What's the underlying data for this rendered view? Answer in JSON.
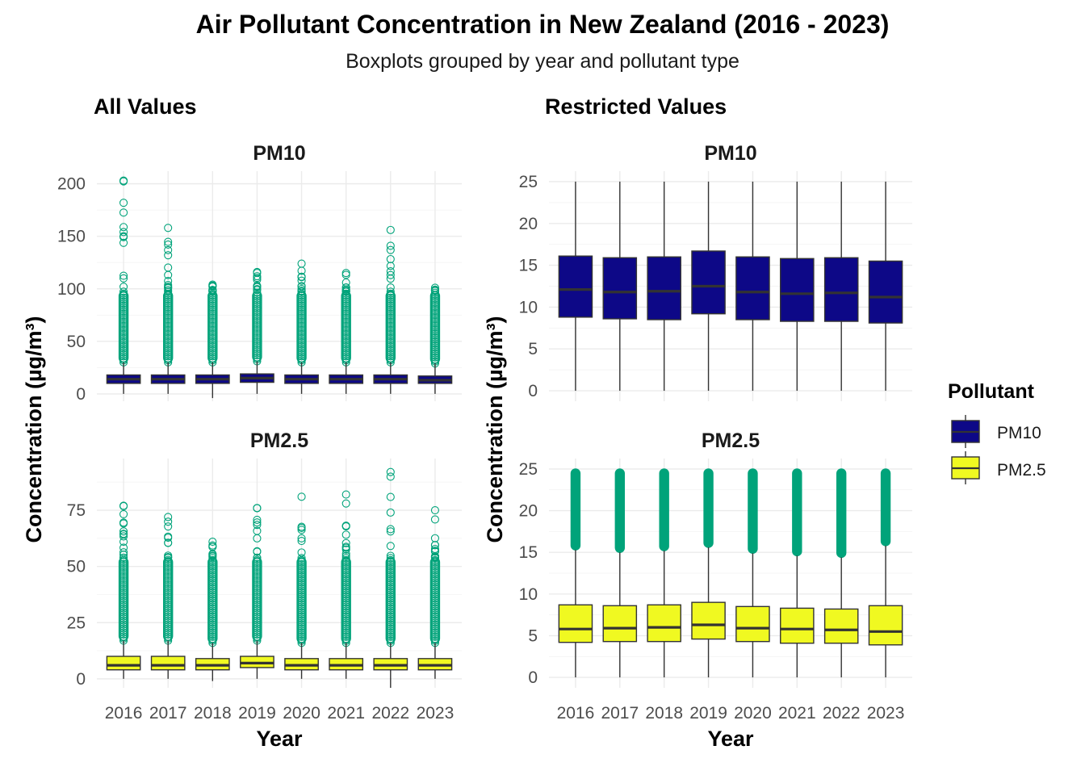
{
  "title": "Air Pollutant Concentration in New Zealand (2016 - 2023)",
  "subtitle": "Boxplots grouped by year and pollutant type",
  "legend": {
    "title": "Pollutant",
    "items": [
      {
        "label": "PM10",
        "color": "#0d0887"
      },
      {
        "label": "PM2.5",
        "color": "#f0f921"
      }
    ]
  },
  "outlier_color": "#00a37a",
  "chart_data": [
    {
      "type": "boxplot",
      "group_title": "All Values",
      "facets": [
        {
          "title": "PM10",
          "fill": "#0d0887",
          "xlabel": "",
          "ylabel": "Concentration (µg/m³)",
          "categories": [
            "2016",
            "2017",
            "2018",
            "2019",
            "2020",
            "2021",
            "2022",
            "2023"
          ],
          "ylim": [
            -7,
            212
          ],
          "yticks": [
            0,
            50,
            100,
            150,
            200
          ],
          "boxes": [
            {
              "q1": 10,
              "median": 14,
              "q3": 18,
              "whisker_low": 0,
              "whisker_high": 30,
              "outlier_max": 203
            },
            {
              "q1": 10,
              "median": 14,
              "q3": 18,
              "whisker_low": 0,
              "whisker_high": 30,
              "outlier_max": 158
            },
            {
              "q1": 10,
              "median": 14,
              "q3": 18,
              "whisker_low": -4,
              "whisker_high": 30,
              "outlier_max": 104
            },
            {
              "q1": 11,
              "median": 15,
              "q3": 19,
              "whisker_low": 0,
              "whisker_high": 31,
              "outlier_max": 116
            },
            {
              "q1": 10,
              "median": 14,
              "q3": 18,
              "whisker_low": 0,
              "whisker_high": 30,
              "outlier_max": 124
            },
            {
              "q1": 10,
              "median": 14,
              "q3": 18,
              "whisker_low": 0,
              "whisker_high": 30,
              "outlier_max": 115
            },
            {
              "q1": 10,
              "median": 14,
              "q3": 18,
              "whisker_low": 0,
              "whisker_high": 30,
              "outlier_max": 156
            },
            {
              "q1": 10,
              "median": 13,
              "q3": 17,
              "whisker_low": 0,
              "whisker_high": 29,
              "outlier_max": 101
            }
          ]
        },
        {
          "title": "PM2.5",
          "fill": "#f0f921",
          "xlabel": "Year",
          "ylabel": "Concentration (µg/m³)",
          "categories": [
            "2016",
            "2017",
            "2018",
            "2019",
            "2020",
            "2021",
            "2022",
            "2023"
          ],
          "ylim": [
            -4,
            98
          ],
          "yticks": [
            0,
            25,
            50,
            75
          ],
          "boxes": [
            {
              "q1": 4,
              "median": 6,
              "q3": 10,
              "whisker_low": 0,
              "whisker_high": 17,
              "outlier_max": 77
            },
            {
              "q1": 4,
              "median": 6,
              "q3": 10,
              "whisker_low": 0,
              "whisker_high": 17,
              "outlier_max": 72
            },
            {
              "q1": 4,
              "median": 6,
              "q3": 9,
              "whisker_low": -1,
              "whisker_high": 16,
              "outlier_max": 61
            },
            {
              "q1": 5,
              "median": 7,
              "q3": 10,
              "whisker_low": 0,
              "whisker_high": 17,
              "outlier_max": 76
            },
            {
              "q1": 4,
              "median": 6,
              "q3": 9,
              "whisker_low": 0,
              "whisker_high": 16,
              "outlier_max": 81
            },
            {
              "q1": 4,
              "median": 6,
              "q3": 9,
              "whisker_low": 0,
              "whisker_high": 16,
              "outlier_max": 82
            },
            {
              "q1": 4,
              "median": 6,
              "q3": 9,
              "whisker_low": -4,
              "whisker_high": 16,
              "outlier_max": 92
            },
            {
              "q1": 4,
              "median": 6,
              "q3": 9,
              "whisker_low": 0,
              "whisker_high": 16,
              "outlier_max": 75
            }
          ]
        }
      ]
    },
    {
      "type": "boxplot",
      "group_title": "Restricted Values",
      "facets": [
        {
          "title": "PM10",
          "fill": "#0d0887",
          "xlabel": "",
          "ylabel": "Concentration (µg/m³)",
          "categories": [
            "2016",
            "2017",
            "2018",
            "2019",
            "2020",
            "2021",
            "2022",
            "2023"
          ],
          "ylim": [
            -1.25,
            26.25
          ],
          "yticks": [
            0,
            5,
            10,
            15,
            20,
            25
          ],
          "boxes": [
            {
              "q1": 8.8,
              "median": 12.1,
              "q3": 16.1,
              "whisker_low": 0,
              "whisker_high": 25,
              "outlier_max": null
            },
            {
              "q1": 8.6,
              "median": 11.8,
              "q3": 15.9,
              "whisker_low": 0,
              "whisker_high": 25,
              "outlier_max": null
            },
            {
              "q1": 8.5,
              "median": 11.9,
              "q3": 16.0,
              "whisker_low": 0,
              "whisker_high": 25,
              "outlier_max": null
            },
            {
              "q1": 9.2,
              "median": 12.5,
              "q3": 16.7,
              "whisker_low": 0,
              "whisker_high": 25,
              "outlier_max": null
            },
            {
              "q1": 8.5,
              "median": 11.8,
              "q3": 16.0,
              "whisker_low": 0,
              "whisker_high": 25,
              "outlier_max": null
            },
            {
              "q1": 8.3,
              "median": 11.6,
              "q3": 15.8,
              "whisker_low": 0,
              "whisker_high": 25,
              "outlier_max": null
            },
            {
              "q1": 8.3,
              "median": 11.7,
              "q3": 15.9,
              "whisker_low": 0,
              "whisker_high": 25,
              "outlier_max": null
            },
            {
              "q1": 8.1,
              "median": 11.2,
              "q3": 15.5,
              "whisker_low": 0,
              "whisker_high": 25,
              "outlier_max": null
            }
          ]
        },
        {
          "title": "PM2.5",
          "fill": "#f0f921",
          "xlabel": "Year",
          "ylabel": "Concentration (µg/m³)",
          "categories": [
            "2016",
            "2017",
            "2018",
            "2019",
            "2020",
            "2021",
            "2022",
            "2023"
          ],
          "ylim": [
            -1.25,
            26.25
          ],
          "yticks": [
            0,
            5,
            10,
            15,
            20,
            25
          ],
          "boxes": [
            {
              "q1": 4.2,
              "median": 5.8,
              "q3": 8.7,
              "whisker_low": 0,
              "whisker_high": 15.3,
              "outlier_max": 25
            },
            {
              "q1": 4.3,
              "median": 5.9,
              "q3": 8.6,
              "whisker_low": 0,
              "whisker_high": 15.0,
              "outlier_max": 25
            },
            {
              "q1": 4.3,
              "median": 6.0,
              "q3": 8.7,
              "whisker_low": 0,
              "whisker_high": 15.2,
              "outlier_max": 25
            },
            {
              "q1": 4.6,
              "median": 6.3,
              "q3": 9.0,
              "whisker_low": 0,
              "whisker_high": 15.6,
              "outlier_max": 25
            },
            {
              "q1": 4.3,
              "median": 5.9,
              "q3": 8.5,
              "whisker_low": 0,
              "whisker_high": 14.9,
              "outlier_max": 25
            },
            {
              "q1": 4.1,
              "median": 5.8,
              "q3": 8.3,
              "whisker_low": 0,
              "whisker_high": 14.6,
              "outlier_max": 25
            },
            {
              "q1": 4.1,
              "median": 5.7,
              "q3": 8.2,
              "whisker_low": 0,
              "whisker_high": 14.4,
              "outlier_max": 25
            },
            {
              "q1": 3.9,
              "median": 5.5,
              "q3": 8.6,
              "whisker_low": 0,
              "whisker_high": 15.8,
              "outlier_max": 25
            }
          ]
        }
      ]
    }
  ]
}
